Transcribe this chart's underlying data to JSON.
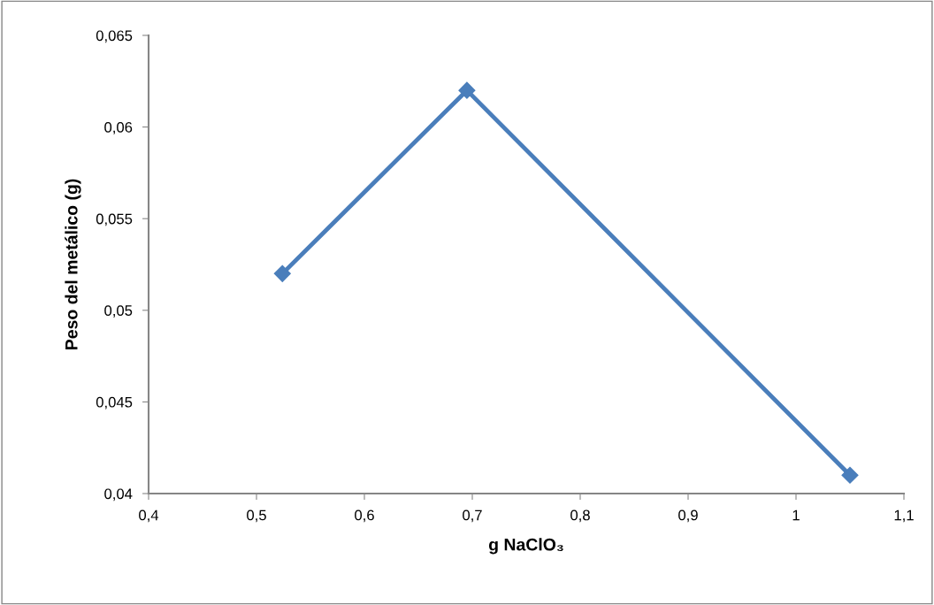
{
  "chart_data": {
    "type": "line",
    "xlabel": "g NaClO₃",
    "ylabel": "Peso del metálico (g)",
    "x": [
      0.524,
      0.695,
      1.05
    ],
    "series": [
      {
        "color": "#4a7ebb",
        "values": [
          0.052,
          0.062,
          0.041
        ]
      }
    ],
    "xlim": [
      0.4,
      1.1
    ],
    "xticks": [
      {
        "value": 0.4,
        "label": "0,4"
      },
      {
        "value": 0.5,
        "label": "0,5"
      },
      {
        "value": 0.6,
        "label": "0,6"
      },
      {
        "value": 0.7,
        "label": "0,7"
      },
      {
        "value": 0.8,
        "label": "0,8"
      },
      {
        "value": 0.9,
        "label": "0,9"
      },
      {
        "value": 1,
        "label": "1"
      },
      {
        "value": 1.1,
        "label": "1,1"
      }
    ],
    "ylim": [
      0.04,
      0.065
    ],
    "yticks": [
      {
        "value": 0.04,
        "label": "0,04"
      },
      {
        "value": 0.045,
        "label": "0,045"
      },
      {
        "value": 0.05,
        "label": "0,05"
      },
      {
        "value": 0.055,
        "label": "0,055"
      },
      {
        "value": 0.06,
        "label": "0,06"
      },
      {
        "value": 0.065,
        "label": "0,065"
      }
    ],
    "grid": false,
    "legend": false,
    "marker": "diamond",
    "line_style": "solid"
  }
}
